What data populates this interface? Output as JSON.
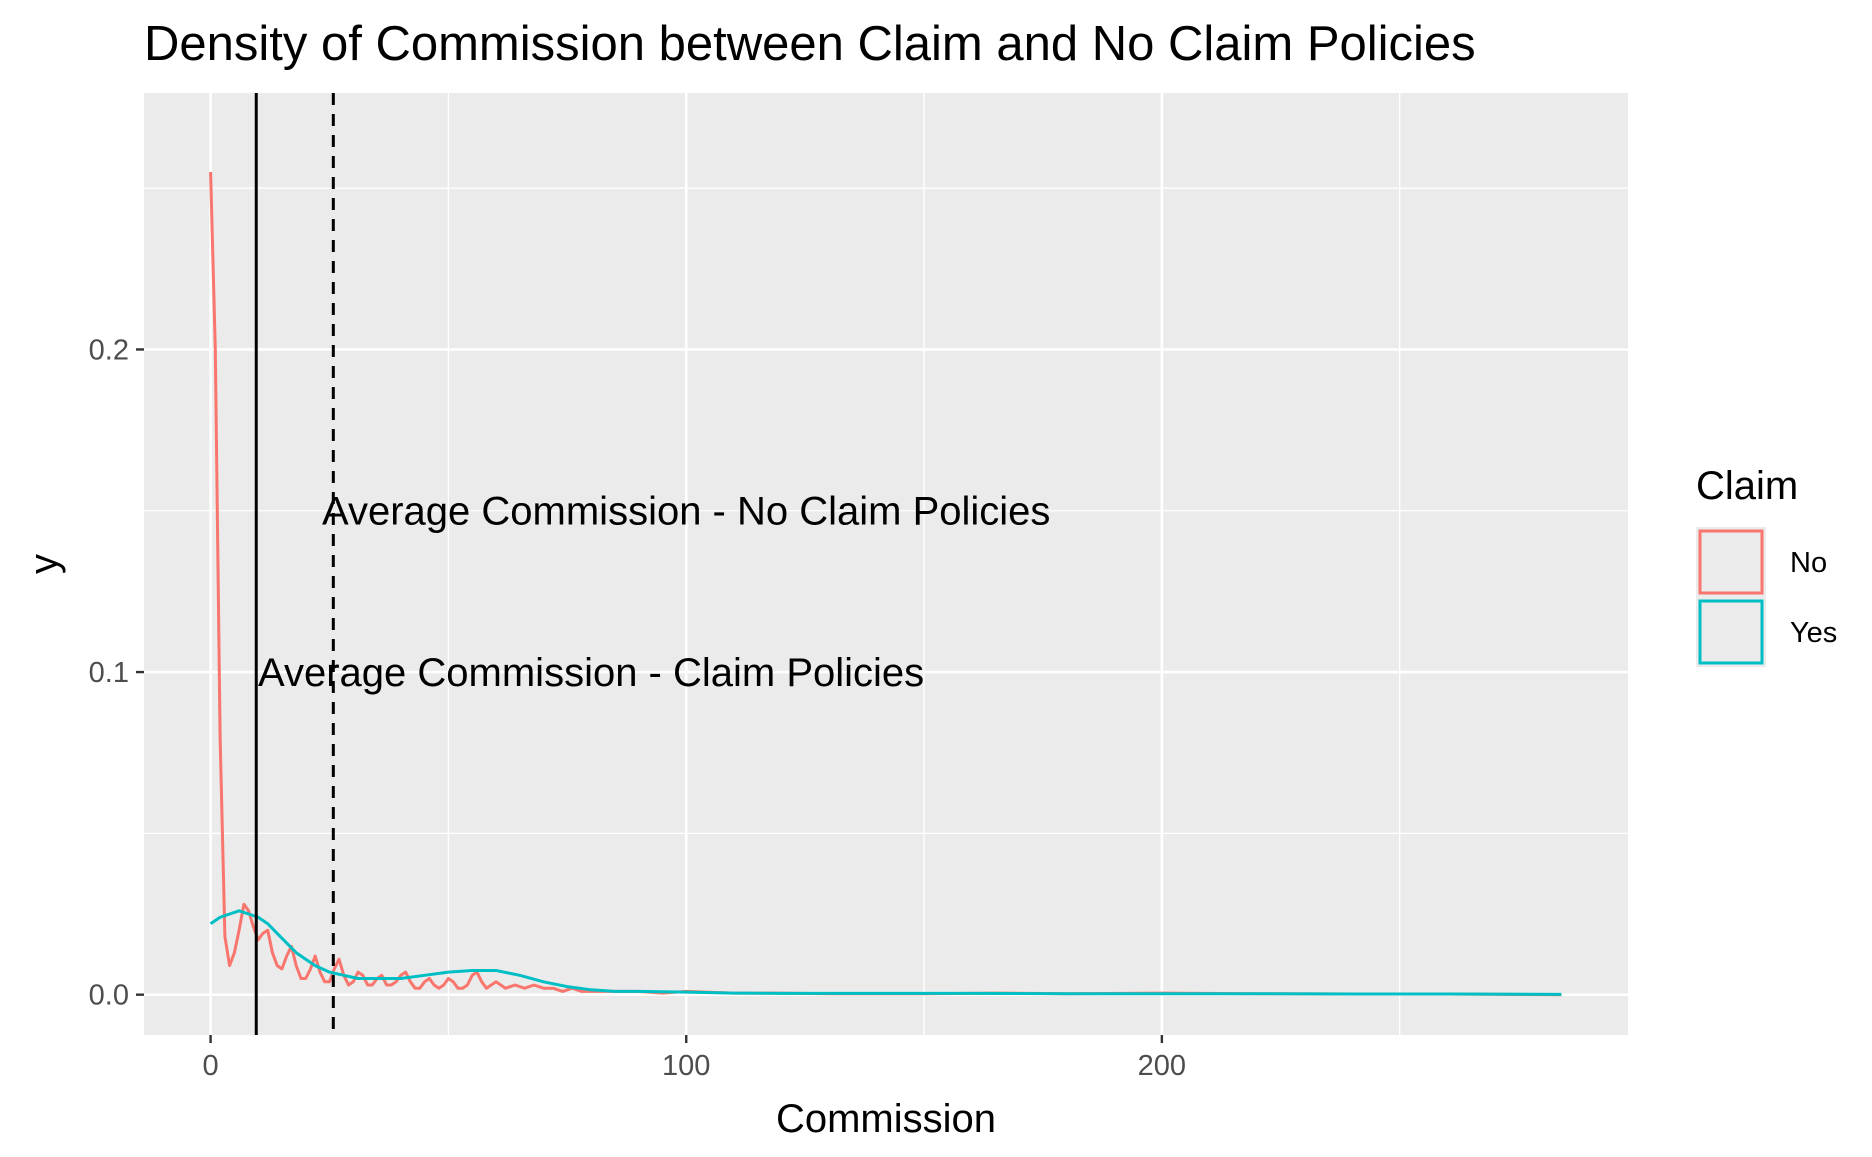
{
  "chart_data": {
    "type": "line",
    "title": "Density of Commission between Claim and No Claim Policies",
    "xlabel": "Commission",
    "ylabel": "y",
    "xlim": [
      -14,
      298
    ],
    "ylim": [
      -0.0125,
      0.2795
    ],
    "x_ticks": [
      0,
      100,
      200
    ],
    "x_tick_labels": [
      "0",
      "100",
      "200"
    ],
    "x_minor_ticks": [
      50,
      150,
      250
    ],
    "y_ticks": [
      0.0,
      0.1,
      0.2
    ],
    "y_tick_labels": [
      "0.0",
      "0.1",
      "0.2"
    ],
    "y_minor_ticks": [
      0.05,
      0.15,
      0.25
    ],
    "grid": true,
    "legend": {
      "title": "Claim",
      "position": "right",
      "entries": [
        {
          "label": "No",
          "color": "#F8766D"
        },
        {
          "label": "Yes",
          "color": "#00BFC4"
        }
      ]
    },
    "vlines": [
      {
        "x": 9.6,
        "style": "solid",
        "color": "#000000"
      },
      {
        "x": 25.8,
        "style": "dashed",
        "color": "#000000"
      }
    ],
    "annotations": [
      {
        "text": "Average Commission - No Claim Policies",
        "x": 100,
        "y": 0.149
      },
      {
        "text": "Average Commission - Claim Policies",
        "x": 80,
        "y": 0.099
      }
    ],
    "series": [
      {
        "name": "No",
        "color": "#F8766D",
        "x": [
          0,
          1,
          2,
          3,
          4,
          5,
          6,
          7,
          8,
          9,
          10,
          11,
          12,
          13,
          14,
          15,
          16,
          17,
          18,
          19,
          20,
          21,
          22,
          23,
          24,
          25,
          26,
          27,
          28,
          29,
          30,
          31,
          32,
          33,
          34,
          35,
          36,
          37,
          38,
          39,
          40,
          41,
          42,
          43,
          44,
          45,
          46,
          47,
          48,
          49,
          50,
          51,
          52,
          53,
          54,
          55,
          56,
          57,
          58,
          59,
          60,
          62,
          64,
          66,
          68,
          70,
          72,
          74,
          76,
          78,
          80,
          85,
          90,
          95,
          100,
          110,
          120,
          130,
          140,
          150,
          165,
          180,
          200,
          220,
          240,
          260,
          284
        ],
        "y": [
          0.255,
          0.2,
          0.08,
          0.018,
          0.009,
          0.013,
          0.02,
          0.028,
          0.026,
          0.021,
          0.017,
          0.019,
          0.02,
          0.013,
          0.009,
          0.008,
          0.012,
          0.015,
          0.009,
          0.005,
          0.005,
          0.008,
          0.012,
          0.007,
          0.004,
          0.004,
          0.008,
          0.011,
          0.006,
          0.003,
          0.004,
          0.007,
          0.006,
          0.003,
          0.003,
          0.005,
          0.006,
          0.003,
          0.003,
          0.004,
          0.006,
          0.007,
          0.004,
          0.002,
          0.002,
          0.004,
          0.005,
          0.003,
          0.002,
          0.003,
          0.005,
          0.004,
          0.002,
          0.002,
          0.003,
          0.006,
          0.007,
          0.004,
          0.002,
          0.003,
          0.004,
          0.002,
          0.003,
          0.002,
          0.003,
          0.002,
          0.002,
          0.001,
          0.002,
          0.001,
          0.001,
          0.001,
          0.001,
          0.0005,
          0.001,
          0.0005,
          0.0005,
          0.0003,
          0.0003,
          0.0003,
          0.0005,
          0.0003,
          0.0005,
          0.0003,
          0.0002,
          0.0002,
          0.0
        ]
      },
      {
        "name": "Yes",
        "color": "#00BFC4",
        "x": [
          0,
          2,
          4,
          6,
          8,
          10,
          12,
          14,
          16,
          18,
          20,
          22,
          25,
          28,
          31,
          35,
          40,
          45,
          50,
          55,
          60,
          65,
          70,
          75,
          80,
          85,
          90,
          100,
          110,
          120,
          140,
          160,
          180,
          200,
          220,
          240,
          260,
          284
        ],
        "y": [
          0.022,
          0.024,
          0.025,
          0.026,
          0.025,
          0.024,
          0.022,
          0.019,
          0.016,
          0.013,
          0.011,
          0.009,
          0.007,
          0.006,
          0.005,
          0.005,
          0.005,
          0.006,
          0.007,
          0.0075,
          0.0075,
          0.006,
          0.004,
          0.0025,
          0.0015,
          0.001,
          0.001,
          0.0008,
          0.0005,
          0.0004,
          0.0004,
          0.0004,
          0.0003,
          0.0003,
          0.0003,
          0.0002,
          0.0002,
          0.0001
        ]
      }
    ]
  }
}
